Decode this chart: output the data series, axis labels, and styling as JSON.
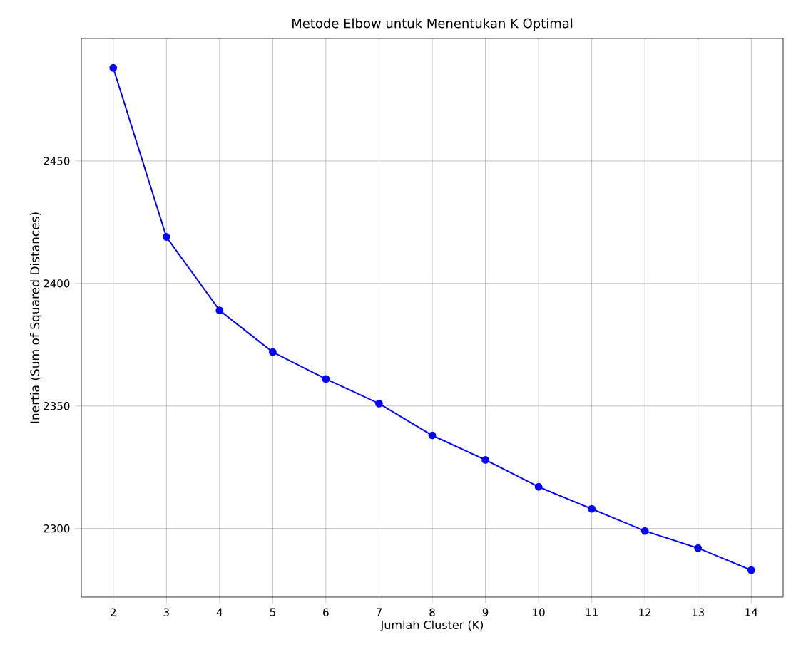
{
  "chart_data": {
    "type": "line",
    "title": "Metode Elbow untuk Menentukan K Optimal",
    "xlabel": "Jumlah Cluster (K)",
    "ylabel": "Inertia (Sum of Squared Distances)",
    "x": [
      2,
      3,
      4,
      5,
      6,
      7,
      8,
      9,
      10,
      11,
      12,
      13,
      14
    ],
    "series": [
      {
        "color": "#0000ff",
        "values": [
          2488,
          2419,
          2389,
          2372,
          2361,
          2351,
          2338,
          2328,
          2317,
          2308,
          2299,
          2292,
          2283
        ]
      }
    ],
    "xlim": [
      1.4,
      14.6
    ],
    "ylim": [
      2272,
      2500
    ],
    "xticks": [
      2,
      3,
      4,
      5,
      6,
      7,
      8,
      9,
      10,
      11,
      12,
      13,
      14
    ],
    "yticks": [
      2300,
      2350,
      2400,
      2450
    ],
    "grid": true,
    "marker": "circle",
    "line_style": "solid"
  }
}
